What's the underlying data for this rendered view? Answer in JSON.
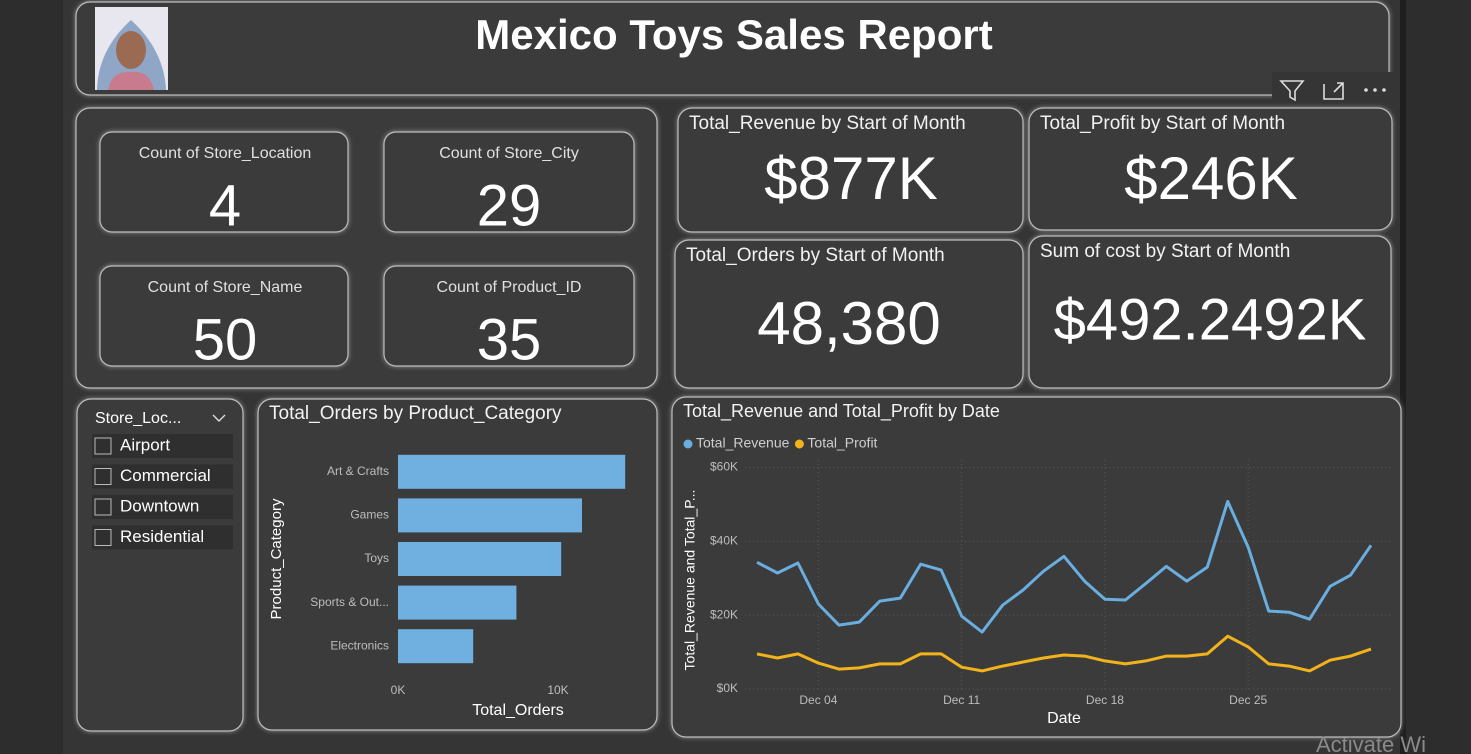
{
  "header": {
    "title": "Mexico Toys Sales Report"
  },
  "cards": [
    {
      "label": "Count of Store_Location",
      "value": "4"
    },
    {
      "label": "Count of Store_City",
      "value": "29"
    },
    {
      "label": "Count of Store_Name",
      "value": "50"
    },
    {
      "label": "Count of Product_ID",
      "value": "35"
    },
    {
      "label": "Total_Revenue by Start of Month",
      "value": "$877K"
    },
    {
      "label": "Total_Profit by Start of Month",
      "value": "$246K"
    },
    {
      "label": "Total_Orders by Start of Month",
      "value": "48,380"
    },
    {
      "label": "Sum of cost by Start of Month",
      "value": "$492.2492K"
    }
  ],
  "slicer": {
    "title": "Store_Loc...",
    "items": [
      "Airport",
      "Commercial",
      "Downtown",
      "Residential"
    ]
  },
  "chart_data": [
    {
      "type": "bar",
      "orientation": "horizontal",
      "title": "Total_Orders by Product_Category",
      "categories": [
        "Art & Crafts",
        "Games",
        "Toys",
        "Sports & Out...",
        "Electronics"
      ],
      "values": [
        14200,
        11500,
        10200,
        7400,
        4700
      ],
      "color": "#6fb0e0",
      "xlim": [
        0,
        15000
      ],
      "xticks": [
        {
          "value": 0,
          "label": "0K"
        },
        {
          "value": 10000,
          "label": "10K"
        }
      ],
      "xlabel": "Total_Orders",
      "ylabel": "Product_Category",
      "grid": false
    },
    {
      "type": "line",
      "title": "Total_Revenue and Total_Profit by Date",
      "x": [
        "Dec 01",
        "Dec 02",
        "Dec 03",
        "Dec 04",
        "Dec 05",
        "Dec 06",
        "Dec 07",
        "Dec 08",
        "Dec 09",
        "Dec 10",
        "Dec 11",
        "Dec 12",
        "Dec 13",
        "Dec 14",
        "Dec 15",
        "Dec 16",
        "Dec 17",
        "Dec 18",
        "Dec 19",
        "Dec 20",
        "Dec 21",
        "Dec 22",
        "Dec 23",
        "Dec 24",
        "Dec 25",
        "Dec 26",
        "Dec 27",
        "Dec 28",
        "Dec 29",
        "Dec 30",
        "Dec 31"
      ],
      "series": [
        {
          "name": "Total_Revenue",
          "color": "#6aaee0",
          "values": [
            34300,
            31400,
            34100,
            23000,
            17300,
            18100,
            23800,
            24600,
            33800,
            32200,
            19700,
            15400,
            22700,
            26800,
            31900,
            35900,
            29200,
            24300,
            24100,
            28600,
            33200,
            29200,
            33000,
            50800,
            38400,
            21100,
            20800,
            18900,
            27800,
            30800,
            38900
          ]
        },
        {
          "name": "Total_Profit",
          "color": "#f2b21b",
          "values": [
            9500,
            8400,
            9500,
            7000,
            5400,
            5700,
            6800,
            6800,
            9500,
            9500,
            5900,
            4900,
            6200,
            7300,
            8400,
            9200,
            8900,
            7600,
            6800,
            7600,
            8900,
            8900,
            9500,
            14300,
            11400,
            6800,
            6200,
            4900,
            7800,
            8900,
            10800
          ]
        }
      ],
      "ylim": [
        0,
        62000
      ],
      "yticks": [
        {
          "value": 0,
          "label": "$0K"
        },
        {
          "value": 20000,
          "label": "$20K"
        },
        {
          "value": 40000,
          "label": "$40K"
        },
        {
          "value": 60000,
          "label": "$60K"
        }
      ],
      "xticks": [
        "Dec 04",
        "Dec 11",
        "Dec 18",
        "Dec 25"
      ],
      "xlabel": "Date",
      "ylabel": "Total_Revenue and Total_P...",
      "grid": true,
      "legend": "top-left"
    }
  ],
  "watermark": "Activate Wi"
}
